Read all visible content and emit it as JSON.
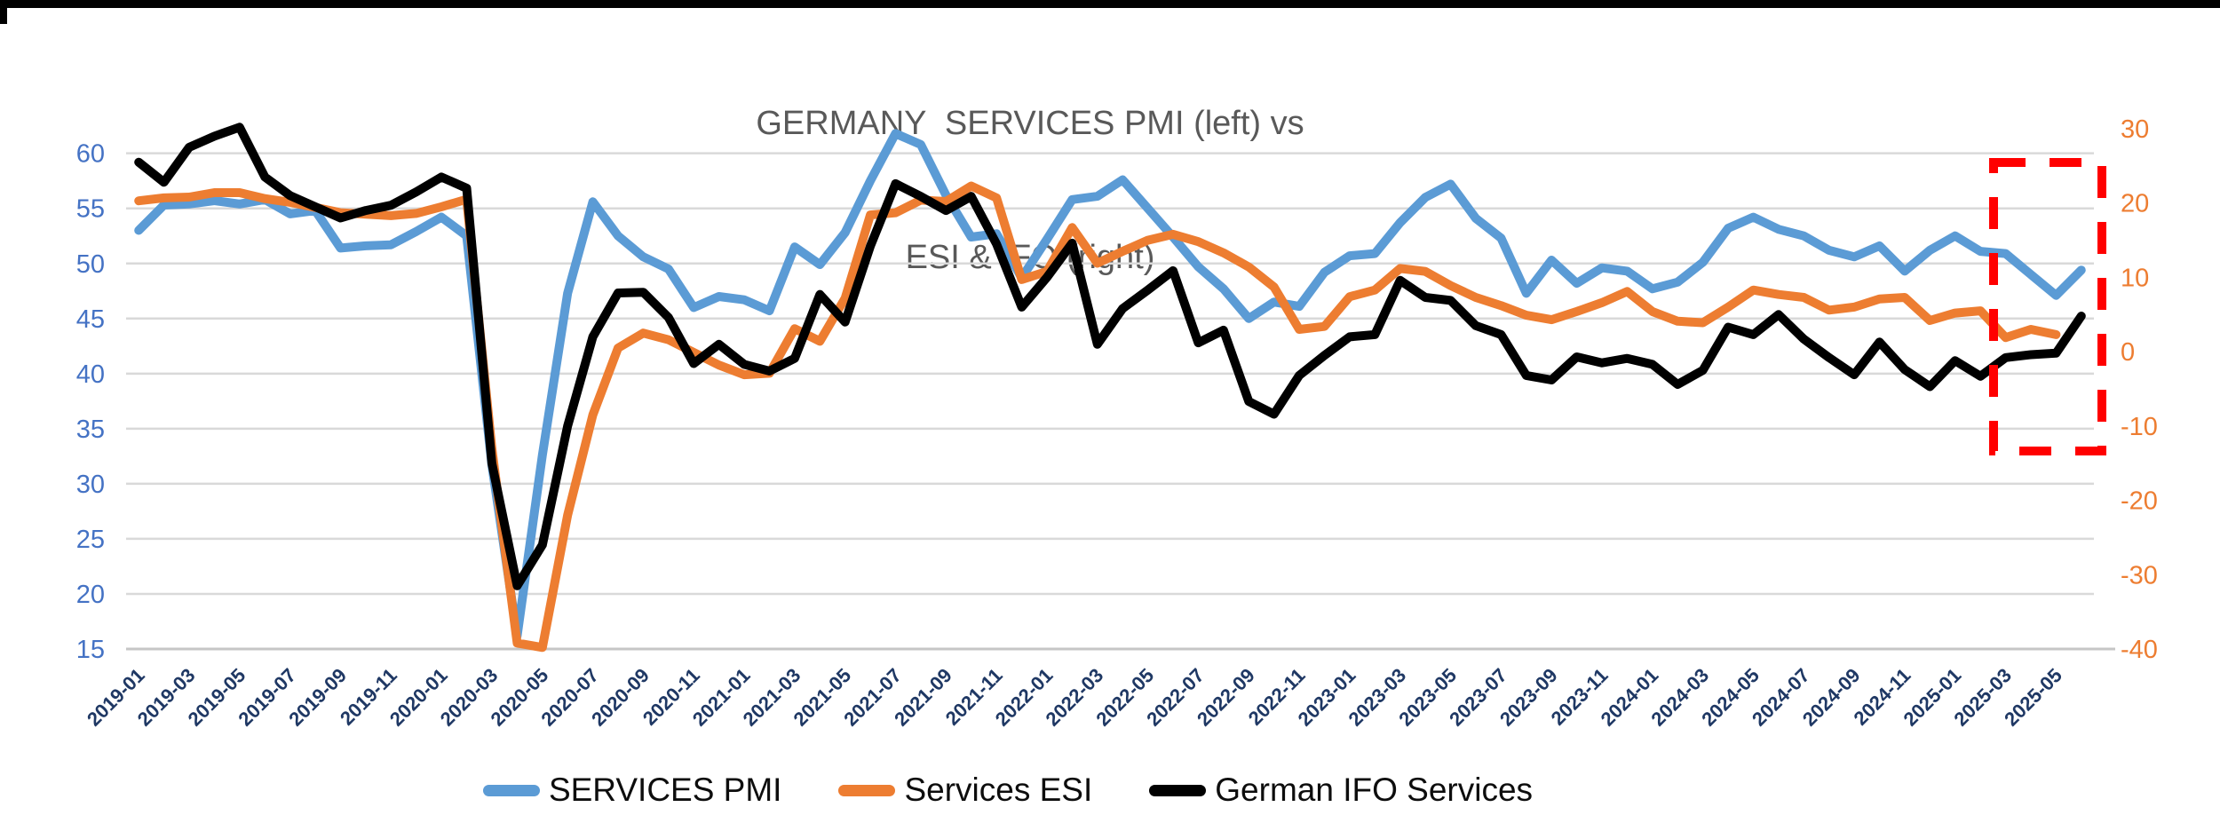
{
  "title": {
    "line1": "GERMANY  SERVICES PMI (left) vs",
    "line2": "ESI & IFO (right)"
  },
  "legend": {
    "items": [
      {
        "label": "SERVICES PMI",
        "color": "#5B9BD5"
      },
      {
        "label": "Services ESI",
        "color": "#ED7D31"
      },
      {
        "label": "German IFO Services",
        "color": "#000000"
      }
    ]
  },
  "colors": {
    "gridline": "#D9D9D9",
    "axis_line": "#C6C6C6",
    "left_axis_labels": "#4472C4",
    "right_axis_labels": "#ED7D31",
    "x_axis_labels": "#1F3864",
    "title_text": "#595959",
    "highlight_box": "#FF0000",
    "pmi_line": "#5B9BD5",
    "esi_line": "#ED7D31",
    "ifo_line": "#000000"
  },
  "chart_data": {
    "type": "line",
    "title": "GERMANY SERVICES PMI (left) vs ESI & IFO (right)",
    "x_start": "2019-01",
    "x_end": "2025-06",
    "n_points": 78,
    "x_tick_labels": [
      "2019-01",
      "2019-03",
      "2019-05",
      "2019-07",
      "2019-09",
      "2019-11",
      "2020-01",
      "2020-03",
      "2020-05",
      "2020-07",
      "2020-09",
      "2020-11",
      "2021-01",
      "2021-03",
      "2021-05",
      "2021-07",
      "2021-09",
      "2021-11",
      "2022-01",
      "2022-03",
      "2022-05",
      "2022-07",
      "2022-09",
      "2022-11",
      "2023-01",
      "2023-03",
      "2023-05",
      "2023-07",
      "2023-09",
      "2023-11",
      "2024-01",
      "2024-03",
      "2024-05",
      "2024-07",
      "2024-09",
      "2024-11",
      "2025-01",
      "2025-03",
      "2025-05"
    ],
    "x_tick_every": 2,
    "left_axis": {
      "ticks": [
        60,
        55,
        50,
        45,
        40,
        35,
        30,
        25,
        20,
        15
      ],
      "min": 15,
      "max": 62.2,
      "grid": true
    },
    "right_axis": {
      "ticks": [
        30,
        20,
        10,
        0,
        -10,
        -20,
        -30,
        -40
      ],
      "min": -40,
      "max": 30,
      "grid": false
    },
    "series": [
      {
        "name": "SERVICES PMI",
        "axis": "left",
        "color": "#5B9BD5",
        "values": [
          53.0,
          55.3,
          55.4,
          55.7,
          55.4,
          55.8,
          54.5,
          54.8,
          51.4,
          51.6,
          51.7,
          52.9,
          54.2,
          52.5,
          31.7,
          16.2,
          32.6,
          47.3,
          55.6,
          52.5,
          50.6,
          49.5,
          46.0,
          47.0,
          46.7,
          45.7,
          51.5,
          49.9,
          52.8,
          57.5,
          61.8,
          60.8,
          56.2,
          52.4,
          52.7,
          48.7,
          52.2,
          55.8,
          56.1,
          57.6,
          55.0,
          52.4,
          49.7,
          47.7,
          45.0,
          46.5,
          46.1,
          49.2,
          50.7,
          50.9,
          53.7,
          56.0,
          57.2,
          54.1,
          52.3,
          47.3,
          50.3,
          48.2,
          49.6,
          49.3,
          47.7,
          48.3,
          50.1,
          53.2,
          54.2,
          53.1,
          52.5,
          51.2,
          50.6,
          51.6,
          49.3,
          51.2,
          52.5,
          51.1,
          50.9,
          49.0,
          47.1,
          49.4
        ]
      },
      {
        "name": "Services ESI",
        "axis": "right",
        "color": "#ED7D31",
        "values": [
          20.3,
          20.7,
          20.8,
          21.4,
          21.4,
          20.6,
          20.1,
          19.4,
          18.7,
          18.5,
          18.3,
          18.6,
          19.5,
          20.5,
          -13.0,
          -39.2,
          -39.8,
          -22.0,
          -8.5,
          0.5,
          2.5,
          1.6,
          -0.1,
          -1.8,
          -3.1,
          -2.9,
          3.1,
          1.4,
          7.2,
          18.4,
          18.7,
          20.4,
          20.2,
          22.3,
          20.7,
          9.7,
          10.8,
          16.7,
          11.9,
          13.5,
          15.0,
          15.8,
          14.8,
          13.3,
          11.4,
          8.7,
          3.0,
          3.4,
          7.4,
          8.3,
          11.2,
          10.8,
          8.9,
          7.3,
          6.2,
          4.9,
          4.3,
          5.4,
          6.6,
          8.1,
          5.4,
          4.1,
          3.9,
          6.0,
          8.3,
          7.7,
          7.3,
          5.6,
          6.0,
          7.1,
          7.3,
          4.2,
          5.2,
          5.5,
          1.9,
          3.0,
          2.3,
          null
        ]
      },
      {
        "name": "German IFO Services",
        "axis": "right",
        "color": "#000000",
        "values": [
          25.5,
          22.8,
          27.5,
          29.0,
          30.2,
          23.5,
          21.0,
          19.5,
          18.0,
          19.0,
          19.7,
          21.5,
          23.5,
          22.0,
          -15.0,
          -31.5,
          -26.0,
          -10.0,
          2.0,
          7.9,
          8.0,
          4.6,
          -1.6,
          1.0,
          -1.7,
          -2.6,
          -0.9,
          7.7,
          4.0,
          14.2,
          22.6,
          20.9,
          19.0,
          20.9,
          14.5,
          6.0,
          10.0,
          14.6,
          1.0,
          5.8,
          8.3,
          10.9,
          1.2,
          2.9,
          -6.7,
          -8.4,
          -3.2,
          -0.5,
          2.0,
          2.3,
          9.6,
          7.3,
          6.9,
          3.5,
          2.3,
          -3.2,
          -3.8,
          -0.7,
          -1.5,
          -0.9,
          -1.7,
          -4.4,
          -2.5,
          3.3,
          2.3,
          5.0,
          1.7,
          -0.8,
          -3.1,
          1.3,
          -2.4,
          -4.7,
          -1.2,
          -3.3,
          -0.8,
          -0.4,
          -0.2,
          4.8
        ]
      }
    ],
    "highlight_box": {
      "style": "dashed",
      "color": "#FF0000",
      "from_label": "2025-02",
      "to_label": "2025-06",
      "purpose": "highlight latest months"
    },
    "legend_position": "bottom"
  }
}
